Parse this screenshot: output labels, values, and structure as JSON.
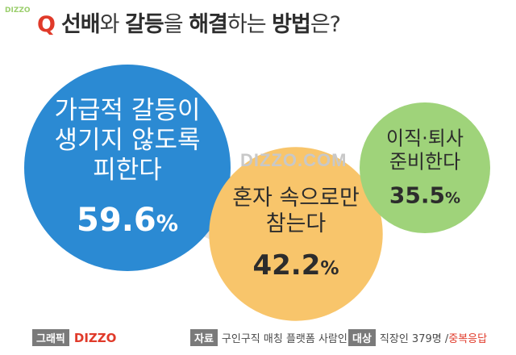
{
  "header": {
    "logo_text": "DIZZO",
    "q_mark": "Q",
    "question_parts": [
      {
        "text": "선배",
        "strong": true
      },
      {
        "text": "와 ",
        "strong": false
      },
      {
        "text": "갈등",
        "strong": true
      },
      {
        "text": "을 ",
        "strong": false
      },
      {
        "text": "해결",
        "strong": true
      },
      {
        "text": "하는 ",
        "strong": false
      },
      {
        "text": "방법",
        "strong": true
      },
      {
        "text": "은?",
        "strong": false
      }
    ]
  },
  "watermark": "DIZZO.COM",
  "chart_data": {
    "type": "bubble",
    "title": "선배와 갈등을 해결하는 방법은?",
    "series": [
      {
        "label_lines": [
          "가급적 갈등이",
          "생기지 않도록",
          "피한다"
        ],
        "value": 59.6,
        "value_text": "59.6",
        "color": "#2b8ad3"
      },
      {
        "label_lines": [
          "혼자 속으로만",
          "참는다"
        ],
        "value": 42.2,
        "value_text": "42.2",
        "color": "#f8c56b"
      },
      {
        "label_lines": [
          "이직·퇴사",
          "준비한다"
        ],
        "value": 35.5,
        "value_text": "35.5",
        "color": "#9fd37a"
      }
    ],
    "unit": "%",
    "connector_color": "#e3e3e3"
  },
  "footer": {
    "graphic_tag": "그래픽",
    "graphic_brand": "DIZZO",
    "source_tag": "자료",
    "source_text": "구인구직 매칭 플랫폼 사람인",
    "target_tag": "대상",
    "target_text": "직장인 379명 /",
    "target_note": "중복응답"
  }
}
